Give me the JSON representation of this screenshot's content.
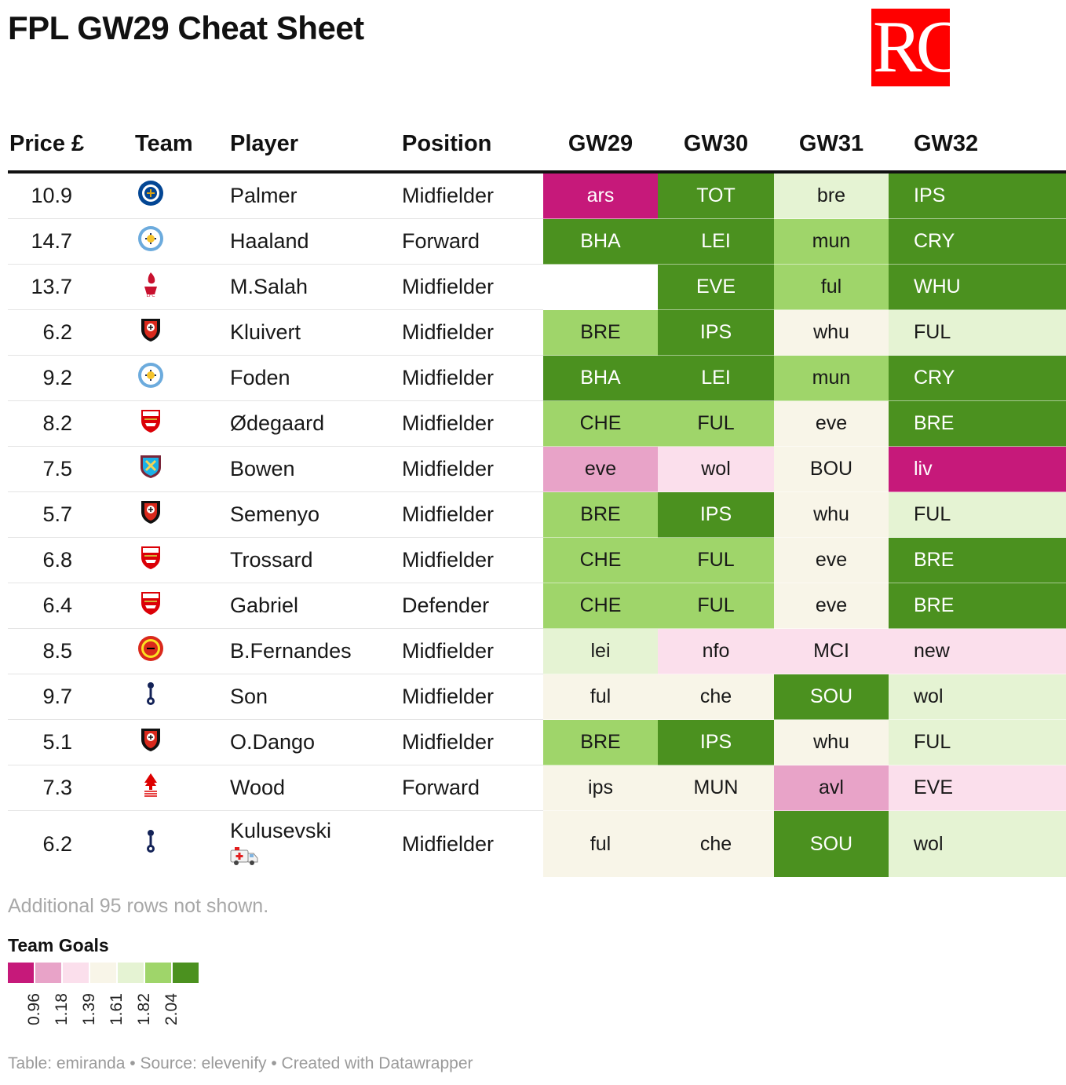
{
  "title": "FPL GW29 Cheat Sheet",
  "logo": {
    "text": "RC",
    "color": "#ff0000"
  },
  "columns": {
    "price": "Price £",
    "team": "Team",
    "player": "Player",
    "position": "Position",
    "gw29": "GW29",
    "gw30": "GW30",
    "gw31": "GW31",
    "gw32": "GW32"
  },
  "colors": {
    "c1": "#c6197a",
    "c2": "#e8a3c8",
    "c3": "#fbdfec",
    "c4": "#f8f5e8",
    "c5": "#e5f3d3",
    "c6": "#9fd56a",
    "c7": "#4b911f",
    "blank": "#ffffff"
  },
  "rows": [
    {
      "price": "10.9",
      "team_icon": "chelsea-crest",
      "player": "Palmer",
      "position": "Midfielder",
      "fixtures": [
        {
          "opp": "ars",
          "c": "c1"
        },
        {
          "opp": "TOT",
          "c": "c7"
        },
        {
          "opp": "bre",
          "c": "c5"
        },
        {
          "opp": "IPS",
          "c": "c7"
        }
      ]
    },
    {
      "price": "14.7",
      "team_icon": "man-city-crest",
      "player": "Haaland",
      "position": "Forward",
      "fixtures": [
        {
          "opp": "BHA",
          "c": "c7"
        },
        {
          "opp": "LEI",
          "c": "c7"
        },
        {
          "opp": "mun",
          "c": "c6"
        },
        {
          "opp": "CRY",
          "c": "c7"
        }
      ]
    },
    {
      "price": "13.7",
      "team_icon": "liverpool-crest",
      "player": "M.Salah",
      "position": "Midfielder",
      "fixtures": [
        {
          "opp": "",
          "c": "blank"
        },
        {
          "opp": "EVE",
          "c": "c7"
        },
        {
          "opp": "ful",
          "c": "c6"
        },
        {
          "opp": "WHU",
          "c": "c7"
        }
      ]
    },
    {
      "price": "6.2",
      "team_icon": "bournemouth-crest",
      "player": "Kluivert",
      "position": "Midfielder",
      "fixtures": [
        {
          "opp": "BRE",
          "c": "c6"
        },
        {
          "opp": "IPS",
          "c": "c7"
        },
        {
          "opp": "whu",
          "c": "c4"
        },
        {
          "opp": "FUL",
          "c": "c5"
        }
      ]
    },
    {
      "price": "9.2",
      "team_icon": "man-city-crest",
      "player": "Foden",
      "position": "Midfielder",
      "fixtures": [
        {
          "opp": "BHA",
          "c": "c7"
        },
        {
          "opp": "LEI",
          "c": "c7"
        },
        {
          "opp": "mun",
          "c": "c6"
        },
        {
          "opp": "CRY",
          "c": "c7"
        }
      ]
    },
    {
      "price": "8.2",
      "team_icon": "arsenal-crest",
      "player": "Ødegaard",
      "position": "Midfielder",
      "fixtures": [
        {
          "opp": "CHE",
          "c": "c6"
        },
        {
          "opp": "FUL",
          "c": "c6"
        },
        {
          "opp": "eve",
          "c": "c4"
        },
        {
          "opp": "BRE",
          "c": "c7"
        }
      ]
    },
    {
      "price": "7.5",
      "team_icon": "west-ham-crest",
      "player": "Bowen",
      "position": "Midfielder",
      "fixtures": [
        {
          "opp": "eve",
          "c": "c2"
        },
        {
          "opp": "wol",
          "c": "c3"
        },
        {
          "opp": "BOU",
          "c": "c4"
        },
        {
          "opp": "liv",
          "c": "c1"
        }
      ]
    },
    {
      "price": "5.7",
      "team_icon": "bournemouth-crest",
      "player": "Semenyo",
      "position": "Midfielder",
      "fixtures": [
        {
          "opp": "BRE",
          "c": "c6"
        },
        {
          "opp": "IPS",
          "c": "c7"
        },
        {
          "opp": "whu",
          "c": "c4"
        },
        {
          "opp": "FUL",
          "c": "c5"
        }
      ]
    },
    {
      "price": "6.8",
      "team_icon": "arsenal-crest",
      "player": "Trossard",
      "position": "Midfielder",
      "fixtures": [
        {
          "opp": "CHE",
          "c": "c6"
        },
        {
          "opp": "FUL",
          "c": "c6"
        },
        {
          "opp": "eve",
          "c": "c4"
        },
        {
          "opp": "BRE",
          "c": "c7"
        }
      ]
    },
    {
      "price": "6.4",
      "team_icon": "arsenal-crest",
      "player": "Gabriel",
      "position": "Defender",
      "fixtures": [
        {
          "opp": "CHE",
          "c": "c6"
        },
        {
          "opp": "FUL",
          "c": "c6"
        },
        {
          "opp": "eve",
          "c": "c4"
        },
        {
          "opp": "BRE",
          "c": "c7"
        }
      ]
    },
    {
      "price": "8.5",
      "team_icon": "man-utd-crest",
      "player": "B.Fernandes",
      "position": "Midfielder",
      "fixtures": [
        {
          "opp": "lei",
          "c": "c5"
        },
        {
          "opp": "nfo",
          "c": "c3"
        },
        {
          "opp": "MCI",
          "c": "c3"
        },
        {
          "opp": "new",
          "c": "c3"
        }
      ]
    },
    {
      "price": "9.7",
      "team_icon": "tottenham-crest",
      "player": "Son",
      "position": "Midfielder",
      "fixtures": [
        {
          "opp": "ful",
          "c": "c4"
        },
        {
          "opp": "che",
          "c": "c4"
        },
        {
          "opp": "SOU",
          "c": "c7"
        },
        {
          "opp": "wol",
          "c": "c5"
        }
      ]
    },
    {
      "price": "5.1",
      "team_icon": "bournemouth-crest",
      "player": "O.Dango",
      "position": "Midfielder",
      "fixtures": [
        {
          "opp": "BRE",
          "c": "c6"
        },
        {
          "opp": "IPS",
          "c": "c7"
        },
        {
          "opp": "whu",
          "c": "c4"
        },
        {
          "opp": "FUL",
          "c": "c5"
        }
      ]
    },
    {
      "price": "7.3",
      "team_icon": "nottingham-forest-crest",
      "player": "Wood",
      "position": "Forward",
      "fixtures": [
        {
          "opp": "ips",
          "c": "c4"
        },
        {
          "opp": "MUN",
          "c": "c4"
        },
        {
          "opp": "avl",
          "c": "c2"
        },
        {
          "opp": "EVE",
          "c": "c3"
        }
      ]
    },
    {
      "price": "6.2",
      "team_icon": "tottenham-crest",
      "player": "Kulusevski",
      "player_icon": "ambulance-icon",
      "position": "Midfielder",
      "fixtures": [
        {
          "opp": "ful",
          "c": "c4"
        },
        {
          "opp": "che",
          "c": "c4"
        },
        {
          "opp": "SOU",
          "c": "c7"
        },
        {
          "opp": "wol",
          "c": "c5"
        }
      ]
    }
  ],
  "note": "Additional 95 rows not shown.",
  "legend": {
    "title": "Team Goals",
    "ticks": [
      "0.96",
      "1.18",
      "1.39",
      "1.61",
      "1.82",
      "2.04"
    ]
  },
  "footer": "Table: emiranda • Source: elevenify • Created with Datawrapper"
}
